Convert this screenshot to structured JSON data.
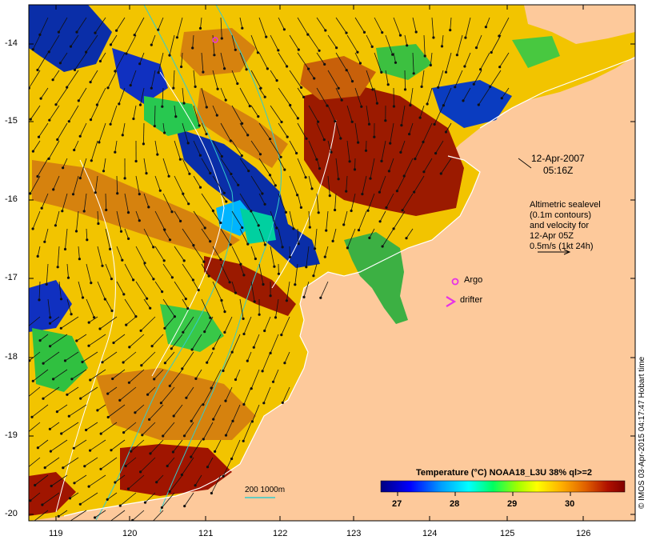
{
  "map": {
    "timestamp": {
      "date": "12-Apr-2007",
      "time": "05:16Z"
    },
    "info_lines": [
      "Altimetric sealevel",
      "(0.1m contours)",
      "and velocity for",
      "12-Apr 05Z",
      "0.5m/s (1kt 24h)"
    ],
    "legend": {
      "argo": "Argo",
      "drifter": "drifter"
    },
    "scale_label": "200  1000m",
    "colorbar": {
      "title": "Temperature (°C) NOAA18_L3U 38% ql>=2",
      "ticks": [
        "27",
        "28",
        "29",
        "30"
      ],
      "range": [
        26.5,
        31
      ]
    },
    "credit": "© IMOS 03-Apr-2015 04:17:47 Hobart time",
    "x_ticks": [
      "119",
      "120",
      "121",
      "122",
      "123",
      "124",
      "125",
      "126"
    ],
    "y_ticks": [
      "-14",
      "-15",
      "-16",
      "-17",
      "-18",
      "-19",
      "-20"
    ],
    "colors": {
      "land": "#fdc99b",
      "argo": "#e632e6",
      "contour": "#33cccc"
    }
  }
}
